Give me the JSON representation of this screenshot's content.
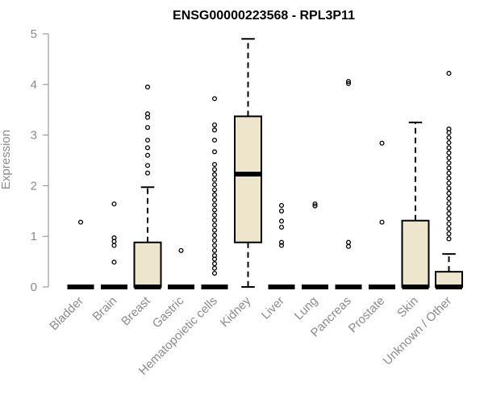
{
  "chart_data": {
    "type": "boxplot",
    "title": "ENSG00000223568 - RPL3P11",
    "xlabel": "",
    "ylabel": "Expression",
    "ylim": [
      0,
      5
    ],
    "yticks": [
      0,
      1,
      2,
      3,
      4,
      5
    ],
    "grid": false,
    "legend": "none",
    "colors": {
      "box_fill": "#ede6cc",
      "stroke": "#000000",
      "axis_text": "#8a8a8a",
      "axis_line": "#8a8a8a"
    },
    "categories": [
      "Bladder",
      "Brain",
      "Breast",
      "Gastric",
      "Hematopoietic cells",
      "Kidney",
      "Liver",
      "Lung",
      "Pancreas",
      "Prostate",
      "Skin",
      "Unknown / Other"
    ],
    "boxes": [
      {
        "name": "Bladder",
        "min": 0,
        "q1": 0,
        "median": 0,
        "q3": 0,
        "max": 0,
        "outliers": [
          1.28
        ]
      },
      {
        "name": "Brain",
        "min": 0,
        "q1": 0,
        "median": 0,
        "q3": 0,
        "max": 0,
        "outliers": [
          0.49,
          0.82,
          0.9,
          0.97,
          1.64
        ]
      },
      {
        "name": "Breast",
        "min": 0,
        "q1": 0,
        "median": 0,
        "q3": 0.88,
        "max": 1.97,
        "outliers": [
          2.25,
          2.4,
          2.6,
          2.75,
          2.9,
          3.15,
          3.35,
          3.42,
          3.95
        ]
      },
      {
        "name": "Gastric",
        "min": 0,
        "q1": 0,
        "median": 0,
        "q3": 0,
        "max": 0,
        "outliers": [
          0.72
        ]
      },
      {
        "name": "Hematopoietic cells",
        "min": 0,
        "q1": 0,
        "median": 0,
        "q3": 0,
        "max": 0,
        "outliers": [
          0.27,
          0.37,
          0.46,
          0.55,
          0.62,
          0.72,
          0.82,
          0.92,
          1.02,
          1.12,
          1.22,
          1.32,
          1.42,
          1.52,
          1.62,
          1.72,
          1.82,
          1.92,
          2.02,
          2.12,
          2.22,
          2.32,
          2.42,
          2.67,
          2.9,
          3.1,
          3.2,
          3.72
        ]
      },
      {
        "name": "Kidney",
        "min": 0,
        "q1": 0.88,
        "median": 2.23,
        "q3": 3.37,
        "max": 4.9,
        "outliers": []
      },
      {
        "name": "Liver",
        "min": 0,
        "q1": 0,
        "median": 0,
        "q3": 0,
        "max": 0,
        "outliers": [
          0.82,
          0.88,
          1.18,
          1.3,
          1.5,
          1.61
        ]
      },
      {
        "name": "Lung",
        "min": 0,
        "q1": 0,
        "median": 0,
        "q3": 0,
        "max": 0,
        "outliers": [
          1.6,
          1.64
        ]
      },
      {
        "name": "Pancreas",
        "min": 0,
        "q1": 0,
        "median": 0,
        "q3": 0,
        "max": 0,
        "outliers": [
          0.8,
          0.88,
          4.02,
          4.06
        ]
      },
      {
        "name": "Prostate",
        "min": 0,
        "q1": 0,
        "median": 0,
        "q3": 0,
        "max": 0,
        "outliers": [
          1.28,
          2.84
        ]
      },
      {
        "name": "Skin",
        "min": 0,
        "q1": 0,
        "median": 0,
        "q3": 1.31,
        "max": 3.25,
        "outliers": []
      },
      {
        "name": "Unknown / Other",
        "min": 0,
        "q1": 0,
        "median": 0,
        "q3": 0.3,
        "max": 0.65,
        "outliers": [
          0.95,
          1.05,
          1.15,
          1.25,
          1.35,
          1.45,
          1.55,
          1.65,
          1.75,
          1.85,
          1.95,
          2.05,
          2.15,
          2.25,
          2.35,
          2.45,
          2.55,
          2.65,
          2.75,
          2.85,
          2.95,
          3.05,
          3.12,
          4.22
        ]
      }
    ]
  }
}
